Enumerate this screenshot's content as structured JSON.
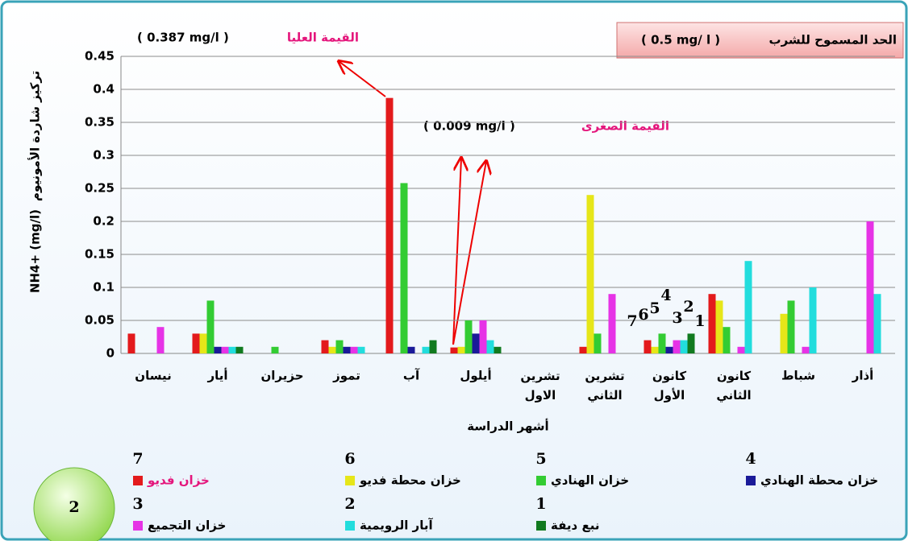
{
  "chart_data": {
    "type": "bar",
    "limit_text": "الحد المسموح للشرب",
    "limit_value": "( 0.5 mg/ l )",
    "max_annotation": {
      "label": "القيمة العليا",
      "value": "( 0.387 mg/l )"
    },
    "min_annotation": {
      "label": "القيمة الصغرى",
      "value": "( 0.009 mg/l )"
    },
    "y_label_en": "NH4+ (mg/l)",
    "y_label_ar": "تركيز شاردة الأمونيوم",
    "x_label": "أشهر الدراسة",
    "badge": "2",
    "categories": [
      "نيسان",
      "أيار",
      "حزيران",
      "تموز",
      "آب",
      "أيلول",
      "تشرين الاول",
      "تشرين الثاني",
      "كانون الأول",
      "كانون الثاني",
      "شباط",
      "أذار"
    ],
    "series": [
      {
        "name": "خزان فديو",
        "number": "7",
        "color": "#e31a1c",
        "values": [
          0.03,
          0.03,
          0,
          0.02,
          0.387,
          0.009,
          0,
          0.01,
          0.02,
          0.09,
          0,
          0
        ]
      },
      {
        "name": "خزان محطة فديو",
        "number": "6",
        "color": "#e6e619",
        "values": [
          0,
          0.03,
          0,
          0.01,
          0,
          0.01,
          0,
          0.24,
          0.01,
          0.08,
          0.06,
          0
        ]
      },
      {
        "name": "خزان الهنادي",
        "number": "5",
        "color": "#33cc33",
        "values": [
          0,
          0.08,
          0.01,
          0.02,
          0.258,
          0.05,
          0,
          0.03,
          0.03,
          0.04,
          0.08,
          0
        ]
      },
      {
        "name": "خزان محطة الهنادي",
        "number": "4",
        "color": "#1a1a99",
        "values": [
          0,
          0.01,
          0,
          0.01,
          0.01,
          0.03,
          0,
          0,
          0.01,
          0,
          0,
          0
        ]
      },
      {
        "name": "خزان التجميع",
        "number": "3",
        "color": "#e633e6",
        "values": [
          0.04,
          0.01,
          0,
          0.01,
          0,
          0.05,
          0,
          0.09,
          0.02,
          0.01,
          0.01,
          0.2
        ]
      },
      {
        "name": "آبار الرويمية",
        "number": "2",
        "color": "#22dddd",
        "values": [
          0,
          0.01,
          0,
          0.01,
          0.01,
          0.02,
          0,
          0,
          0.02,
          0.14,
          0.1,
          0.09
        ]
      },
      {
        "name": "نبع ديفة",
        "number": "1",
        "color": "#117a1f",
        "values": [
          0,
          0.01,
          0,
          0,
          0.02,
          0.01,
          0,
          0,
          0.03,
          0,
          0,
          0
        ]
      }
    ],
    "ylim": [
      0,
      0.45
    ],
    "yticks": [
      0,
      0.05,
      0.1,
      0.15,
      0.2,
      0.25,
      0.3,
      0.35,
      0.4,
      0.45
    ],
    "grid": true
  }
}
